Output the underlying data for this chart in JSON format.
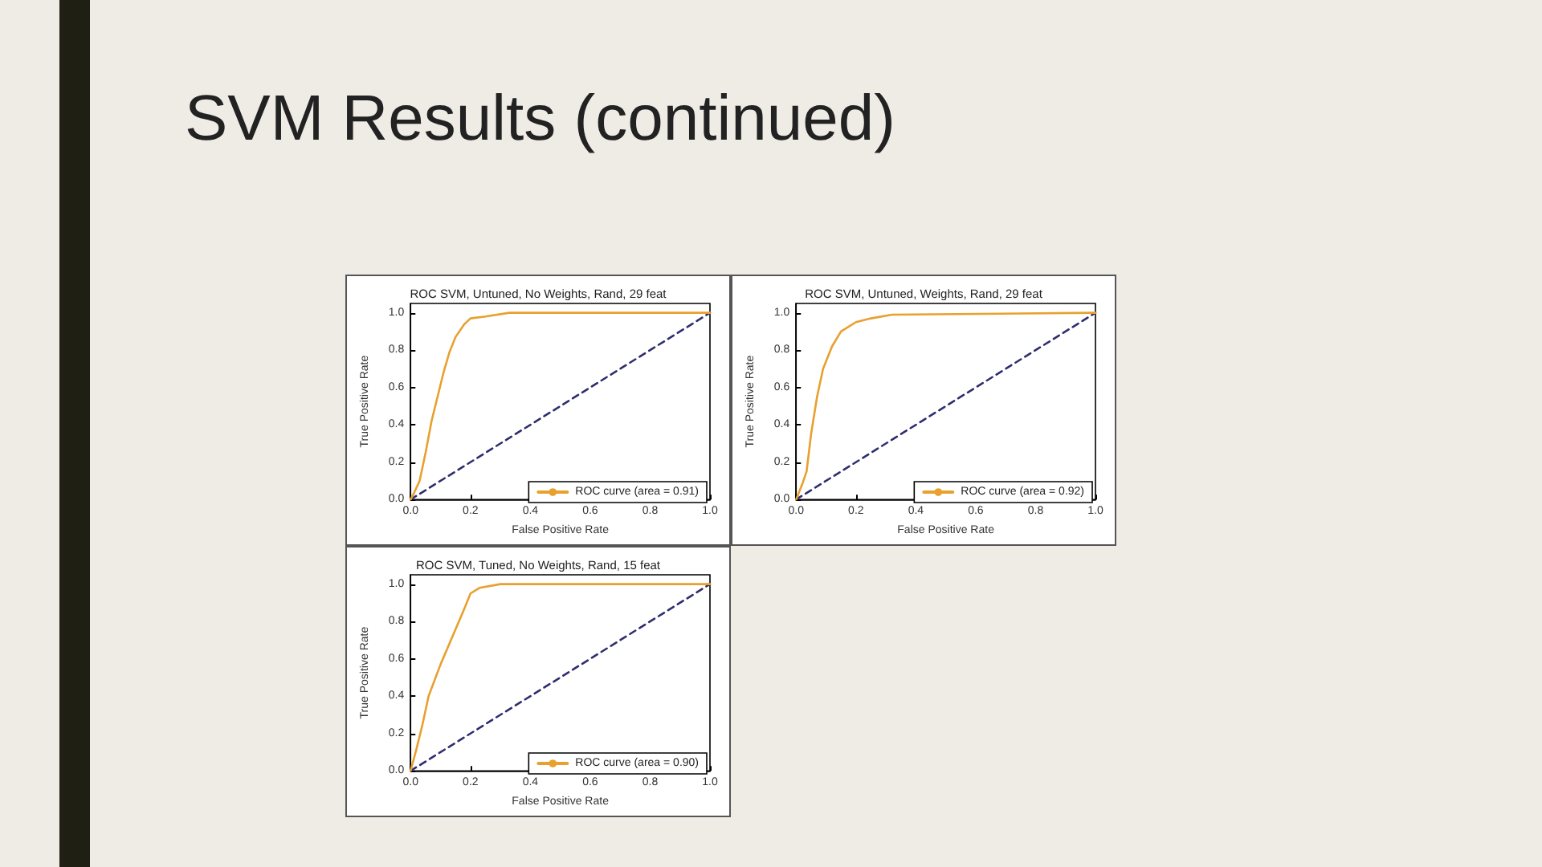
{
  "chart_data": [
    {
      "type": "other",
      "title": "SVM Results (continued)"
    },
    {
      "type": "line",
      "title": "ROC SVM, Untuned, No Weights, Rand, 29 feat",
      "xlabel": "False Positive Rate",
      "ylabel": "True Positive Rate",
      "xlim": [
        0,
        1
      ],
      "ylim": [
        0,
        1.05
      ],
      "xticks": [
        {
          "value": 0,
          "label": "0.0"
        },
        {
          "value": 0.2,
          "label": "0.2"
        },
        {
          "value": 0.4,
          "label": "0.4"
        },
        {
          "value": 0.6,
          "label": "0.6"
        },
        {
          "value": 0.8,
          "label": "0.8"
        },
        {
          "value": 1,
          "label": "1.0"
        }
      ],
      "yticks": [
        {
          "value": 0,
          "label": "0.0"
        },
        {
          "value": 0.2,
          "label": "0.2"
        },
        {
          "value": 0.4,
          "label": "0.4"
        },
        {
          "value": 0.6,
          "label": "0.6"
        },
        {
          "value": 0.8,
          "label": "0.8"
        },
        {
          "value": 1,
          "label": "1.0"
        }
      ],
      "grid": false,
      "legend": "bottom right",
      "series": [
        {
          "name": "ROC curve (area = 0.91)",
          "color": "#e8a02e",
          "line_style": "solid",
          "x": [
            0,
            0.01,
            0.03,
            0.05,
            0.07,
            0.09,
            0.11,
            0.13,
            0.15,
            0.18,
            0.2,
            0.25,
            0.33,
            1
          ],
          "values": [
            0,
            0.03,
            0.1,
            0.25,
            0.42,
            0.55,
            0.68,
            0.79,
            0.87,
            0.94,
            0.97,
            0.98,
            1,
            1
          ]
        },
        {
          "color": "#2e2e6e",
          "line_style": "dashed",
          "x": [
            0,
            1
          ],
          "values": [
            0,
            1
          ]
        }
      ]
    },
    {
      "type": "line",
      "title": "ROC SVM, Untuned, Weights, Rand, 29 feat",
      "xlabel": "False Positive Rate",
      "ylabel": "True Positive Rate",
      "xlim": [
        0,
        1
      ],
      "ylim": [
        0,
        1.05
      ],
      "xticks": [
        {
          "value": 0,
          "label": "0.0"
        },
        {
          "value": 0.2,
          "label": "0.2"
        },
        {
          "value": 0.4,
          "label": "0.4"
        },
        {
          "value": 0.6,
          "label": "0.6"
        },
        {
          "value": 0.8,
          "label": "0.8"
        },
        {
          "value": 1,
          "label": "1.0"
        }
      ],
      "yticks": [
        {
          "value": 0,
          "label": "0.0"
        },
        {
          "value": 0.2,
          "label": "0.2"
        },
        {
          "value": 0.4,
          "label": "0.4"
        },
        {
          "value": 0.6,
          "label": "0.6"
        },
        {
          "value": 0.8,
          "label": "0.8"
        },
        {
          "value": 1,
          "label": "1.0"
        }
      ],
      "grid": false,
      "legend": "bottom right",
      "series": [
        {
          "name": "ROC curve (area = 0.92)",
          "color": "#e8a02e",
          "line_style": "solid",
          "x": [
            0,
            0.02,
            0.035,
            0.05,
            0.07,
            0.09,
            0.12,
            0.15,
            0.2,
            0.25,
            0.32,
            1
          ],
          "values": [
            0,
            0.08,
            0.15,
            0.35,
            0.55,
            0.7,
            0.82,
            0.9,
            0.95,
            0.97,
            0.99,
            1
          ]
        },
        {
          "color": "#2e2e6e",
          "line_style": "dashed",
          "x": [
            0,
            1
          ],
          "values": [
            0,
            1
          ]
        }
      ]
    },
    {
      "type": "line",
      "title": "ROC SVM, Tuned, No Weights, Rand, 15 feat",
      "xlabel": "False Positive Rate",
      "ylabel": "True Positive Rate",
      "xlim": [
        0,
        1
      ],
      "ylim": [
        0,
        1.05
      ],
      "xticks": [
        {
          "value": 0,
          "label": "0.0"
        },
        {
          "value": 0.2,
          "label": "0.2"
        },
        {
          "value": 0.4,
          "label": "0.4"
        },
        {
          "value": 0.6,
          "label": "0.6"
        },
        {
          "value": 0.8,
          "label": "0.8"
        },
        {
          "value": 1,
          "label": "1.0"
        }
      ],
      "yticks": [
        {
          "value": 0,
          "label": "0.0"
        },
        {
          "value": 0.2,
          "label": "0.2"
        },
        {
          "value": 0.4,
          "label": "0.4"
        },
        {
          "value": 0.6,
          "label": "0.6"
        },
        {
          "value": 0.8,
          "label": "0.8"
        },
        {
          "value": 1,
          "label": "1.0"
        }
      ],
      "grid": false,
      "legend": "bottom right",
      "series": [
        {
          "name": "ROC curve (area = 0.90)",
          "color": "#e8a02e",
          "line_style": "solid",
          "x": [
            0,
            0.02,
            0.04,
            0.06,
            0.1,
            0.14,
            0.18,
            0.2,
            0.23,
            0.3,
            1
          ],
          "values": [
            0,
            0.12,
            0.25,
            0.4,
            0.57,
            0.72,
            0.87,
            0.95,
            0.98,
            1,
            1
          ]
        },
        {
          "color": "#2e2e6e",
          "line_style": "dashed",
          "x": [
            0,
            1
          ],
          "values": [
            0,
            1
          ]
        }
      ]
    }
  ]
}
